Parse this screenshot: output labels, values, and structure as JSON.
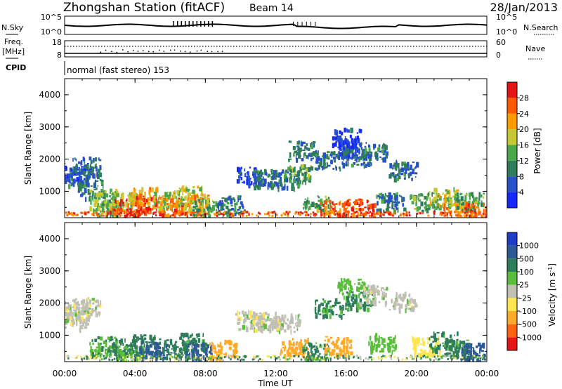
{
  "header": {
    "station": "Zhongshan Station (fitACF)",
    "beam": "Beam 14",
    "date": "28/Jan/2013"
  },
  "strip": {
    "nsky_label": "N.Sky",
    "nsky_ticks": [
      "10^5",
      "10^0"
    ],
    "nsearch_label": "N.Search",
    "nsearch_ticks": [
      "10^5",
      "10^0"
    ],
    "freq_label": "Freq.",
    "freq_unit": "[MHz]",
    "freq_ticks": [
      "18",
      "8"
    ],
    "nave_label": "Nave",
    "nave_ticks": [
      "60",
      "0"
    ],
    "cpid_label": "CPID",
    "cpid_text": "normal (fast stereo) 153"
  },
  "xaxis": {
    "ticks": [
      "00:00",
      "04:00",
      "08:00",
      "12:00",
      "16:00",
      "20:00",
      "00:00"
    ],
    "label": "Time UT"
  },
  "yaxis": {
    "label": "Slant Range [km]",
    "ticks": [
      "1000",
      "2000",
      "3000",
      "4000"
    ]
  },
  "power_colorbar": {
    "label": "Power [dB]",
    "ticks": [
      "4",
      "8",
      "12",
      "16",
      "20",
      "24",
      "28"
    ],
    "colors": [
      "#1428ff",
      "#2850c8",
      "#2e7d5a",
      "#4aa84a",
      "#c8c832",
      "#ff9b00",
      "#ff5a00",
      "#e61414"
    ]
  },
  "velocity_colorbar": {
    "label": "Velocity [m s",
    "label_sup": "-1",
    "label_end": "]",
    "ticks": [
      "1000",
      "500",
      "100",
      "25",
      "-25",
      "-100",
      "-500",
      "-1000"
    ],
    "colors": [
      "#1e3cc8",
      "#2d5a96",
      "#2e7d5a",
      "#5abe3c",
      "#c0c0b4",
      "#ffe650",
      "#ffaa28",
      "#ff6414",
      "#e61414"
    ]
  },
  "chart_data": [
    {
      "type": "heatmap",
      "title": "Power",
      "xlabel": "Time UT",
      "ylabel": "Slant Range [km]",
      "xlim": [
        0,
        24
      ],
      "ylim": [
        180,
        4500
      ],
      "colorbar_range": [
        0,
        30
      ],
      "units": "dB",
      "blobs": [
        {
          "t": 0.5,
          "r": 1500,
          "v": 8
        },
        {
          "t": 0.6,
          "r": 1600,
          "v": 4
        },
        {
          "t": 1.2,
          "r": 1800,
          "v": 8
        },
        {
          "t": 1.5,
          "r": 1100,
          "v": 8
        },
        {
          "t": 2.2,
          "r": 800,
          "v": 16
        },
        {
          "t": 2.4,
          "r": 500,
          "v": 12
        },
        {
          "t": 3.3,
          "r": 700,
          "v": 16
        },
        {
          "t": 3.5,
          "r": 500,
          "v": 28
        },
        {
          "t": 4.5,
          "r": 850,
          "v": 20
        },
        {
          "t": 4.8,
          "r": 600,
          "v": 26
        },
        {
          "t": 5.8,
          "r": 750,
          "v": 16
        },
        {
          "t": 6.3,
          "r": 550,
          "v": 24
        },
        {
          "t": 7.0,
          "r": 900,
          "v": 16
        },
        {
          "t": 7.5,
          "r": 650,
          "v": 20
        },
        {
          "t": 8.0,
          "r": 500,
          "v": 12
        },
        {
          "t": 9.5,
          "r": 600,
          "v": 8
        },
        {
          "t": 10.5,
          "r": 1500,
          "v": 4
        },
        {
          "t": 11.5,
          "r": 1450,
          "v": 8
        },
        {
          "t": 12.5,
          "r": 1400,
          "v": 8
        },
        {
          "t": 13.2,
          "r": 1600,
          "v": 12
        },
        {
          "t": 13.5,
          "r": 2300,
          "v": 8
        },
        {
          "t": 14.3,
          "r": 600,
          "v": 12
        },
        {
          "t": 15.0,
          "r": 2000,
          "v": 8
        },
        {
          "t": 15.3,
          "r": 450,
          "v": 24
        },
        {
          "t": 16.0,
          "r": 2700,
          "v": 4
        },
        {
          "t": 16.3,
          "r": 2400,
          "v": 4
        },
        {
          "t": 16.6,
          "r": 2100,
          "v": 8
        },
        {
          "t": 16.8,
          "r": 500,
          "v": 26
        },
        {
          "t": 17.5,
          "r": 2300,
          "v": 8
        },
        {
          "t": 18.5,
          "r": 700,
          "v": 8
        },
        {
          "t": 19.2,
          "r": 1700,
          "v": 8
        },
        {
          "t": 20.4,
          "r": 700,
          "v": 12
        },
        {
          "t": 21.5,
          "r": 850,
          "v": 16
        },
        {
          "t": 22.3,
          "r": 500,
          "v": 20
        },
        {
          "t": 23.0,
          "r": 700,
          "v": 12
        },
        {
          "t": 23.5,
          "r": 400,
          "v": 24
        }
      ]
    },
    {
      "type": "heatmap",
      "title": "Velocity",
      "xlabel": "Time UT",
      "ylabel": "Slant Range [km]",
      "xlim": [
        0,
        24
      ],
      "ylim": [
        180,
        4500
      ],
      "units": "m s-1",
      "blobs": [
        {
          "t": 0.5,
          "r": 1500,
          "v": 0
        },
        {
          "t": 0.6,
          "r": 1800,
          "v": 0
        },
        {
          "t": 1.2,
          "r": 1900,
          "v": 0
        },
        {
          "t": 2.2,
          "r": 700,
          "v": 80
        },
        {
          "t": 3.3,
          "r": 650,
          "v": 200
        },
        {
          "t": 3.7,
          "r": 450,
          "v": 80
        },
        {
          "t": 4.6,
          "r": 750,
          "v": 150
        },
        {
          "t": 5.0,
          "r": 550,
          "v": 600
        },
        {
          "t": 6.3,
          "r": 600,
          "v": 150
        },
        {
          "t": 7.2,
          "r": 800,
          "v": 120
        },
        {
          "t": 7.6,
          "r": 500,
          "v": 600
        },
        {
          "t": 9.0,
          "r": 600,
          "v": -150
        },
        {
          "t": 10.5,
          "r": 1500,
          "v": 0
        },
        {
          "t": 11.5,
          "r": 1450,
          "v": 0
        },
        {
          "t": 12.5,
          "r": 1400,
          "v": 0
        },
        {
          "t": 13.0,
          "r": 650,
          "v": -150
        },
        {
          "t": 14.3,
          "r": 500,
          "v": 120
        },
        {
          "t": 15.0,
          "r": 1900,
          "v": 120
        },
        {
          "t": 15.5,
          "r": 700,
          "v": -300
        },
        {
          "t": 16.3,
          "r": 2500,
          "v": 60
        },
        {
          "t": 16.7,
          "r": 2100,
          "v": 120
        },
        {
          "t": 17.5,
          "r": 2300,
          "v": 0
        },
        {
          "t": 18.0,
          "r": 800,
          "v": 60
        },
        {
          "t": 19.2,
          "r": 2100,
          "v": 0
        },
        {
          "t": 20.5,
          "r": 700,
          "v": -60
        },
        {
          "t": 21.5,
          "r": 850,
          "v": 120
        },
        {
          "t": 22.3,
          "r": 600,
          "v": 120
        },
        {
          "t": 23.3,
          "r": 500,
          "v": 600
        }
      ]
    }
  ]
}
